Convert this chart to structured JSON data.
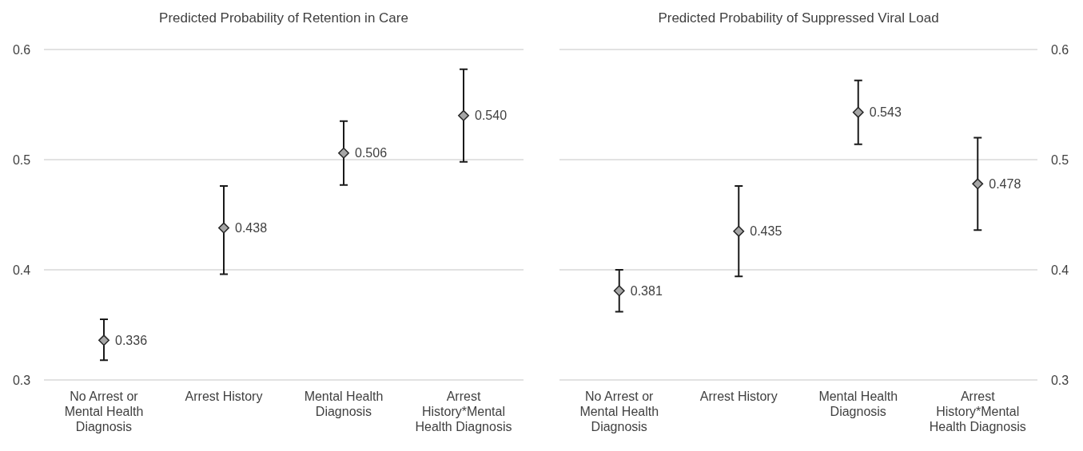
{
  "chart_data": [
    {
      "type": "scatter",
      "title": "Predicted Probability of Retention in Care",
      "categories": [
        "No Arrest or Mental Health Diagnosis",
        "Arrest History",
        "Mental Health Diagnosis",
        "Arrest History*Mental Health Diagnosis"
      ],
      "series": [
        {
          "color": "#a6a6a6",
          "values": [
            0.336,
            0.438,
            0.506,
            0.54
          ],
          "errors": [
            [
              0.318,
              0.355
            ],
            [
              0.396,
              0.476
            ],
            [
              0.477,
              0.535
            ],
            [
              0.498,
              0.582
            ]
          ],
          "value_labels": [
            "0.336",
            "0.438",
            "0.506",
            "0.540"
          ]
        }
      ],
      "ylim": [
        0.3,
        0.6
      ],
      "yticks": [
        0.3,
        0.4,
        0.5,
        0.6
      ],
      "grid": "y",
      "marker": "diamond"
    },
    {
      "type": "scatter",
      "title": "Predicted Probability of Suppressed Viral Load",
      "categories": [
        "No Arrest or Mental Health Diagnosis",
        "Arrest History",
        "Mental Health Diagnosis",
        "Arrest History*Mental Health Diagnosis"
      ],
      "series": [
        {
          "color": "#a6a6a6",
          "axis": "y2",
          "values": [
            0.381,
            0.435,
            0.543,
            0.478
          ],
          "errors": [
            [
              0.362,
              0.4
            ],
            [
              0.394,
              0.476
            ],
            [
              0.514,
              0.572
            ],
            [
              0.436,
              0.52
            ]
          ],
          "value_labels": [
            "0.381",
            "0.435",
            "0.543",
            "0.478"
          ]
        }
      ],
      "y2lim": [
        0.3,
        0.6
      ],
      "y2ticks": [
        0.3,
        0.4,
        0.5,
        0.6
      ],
      "grid": "y",
      "marker": "diamond"
    }
  ]
}
